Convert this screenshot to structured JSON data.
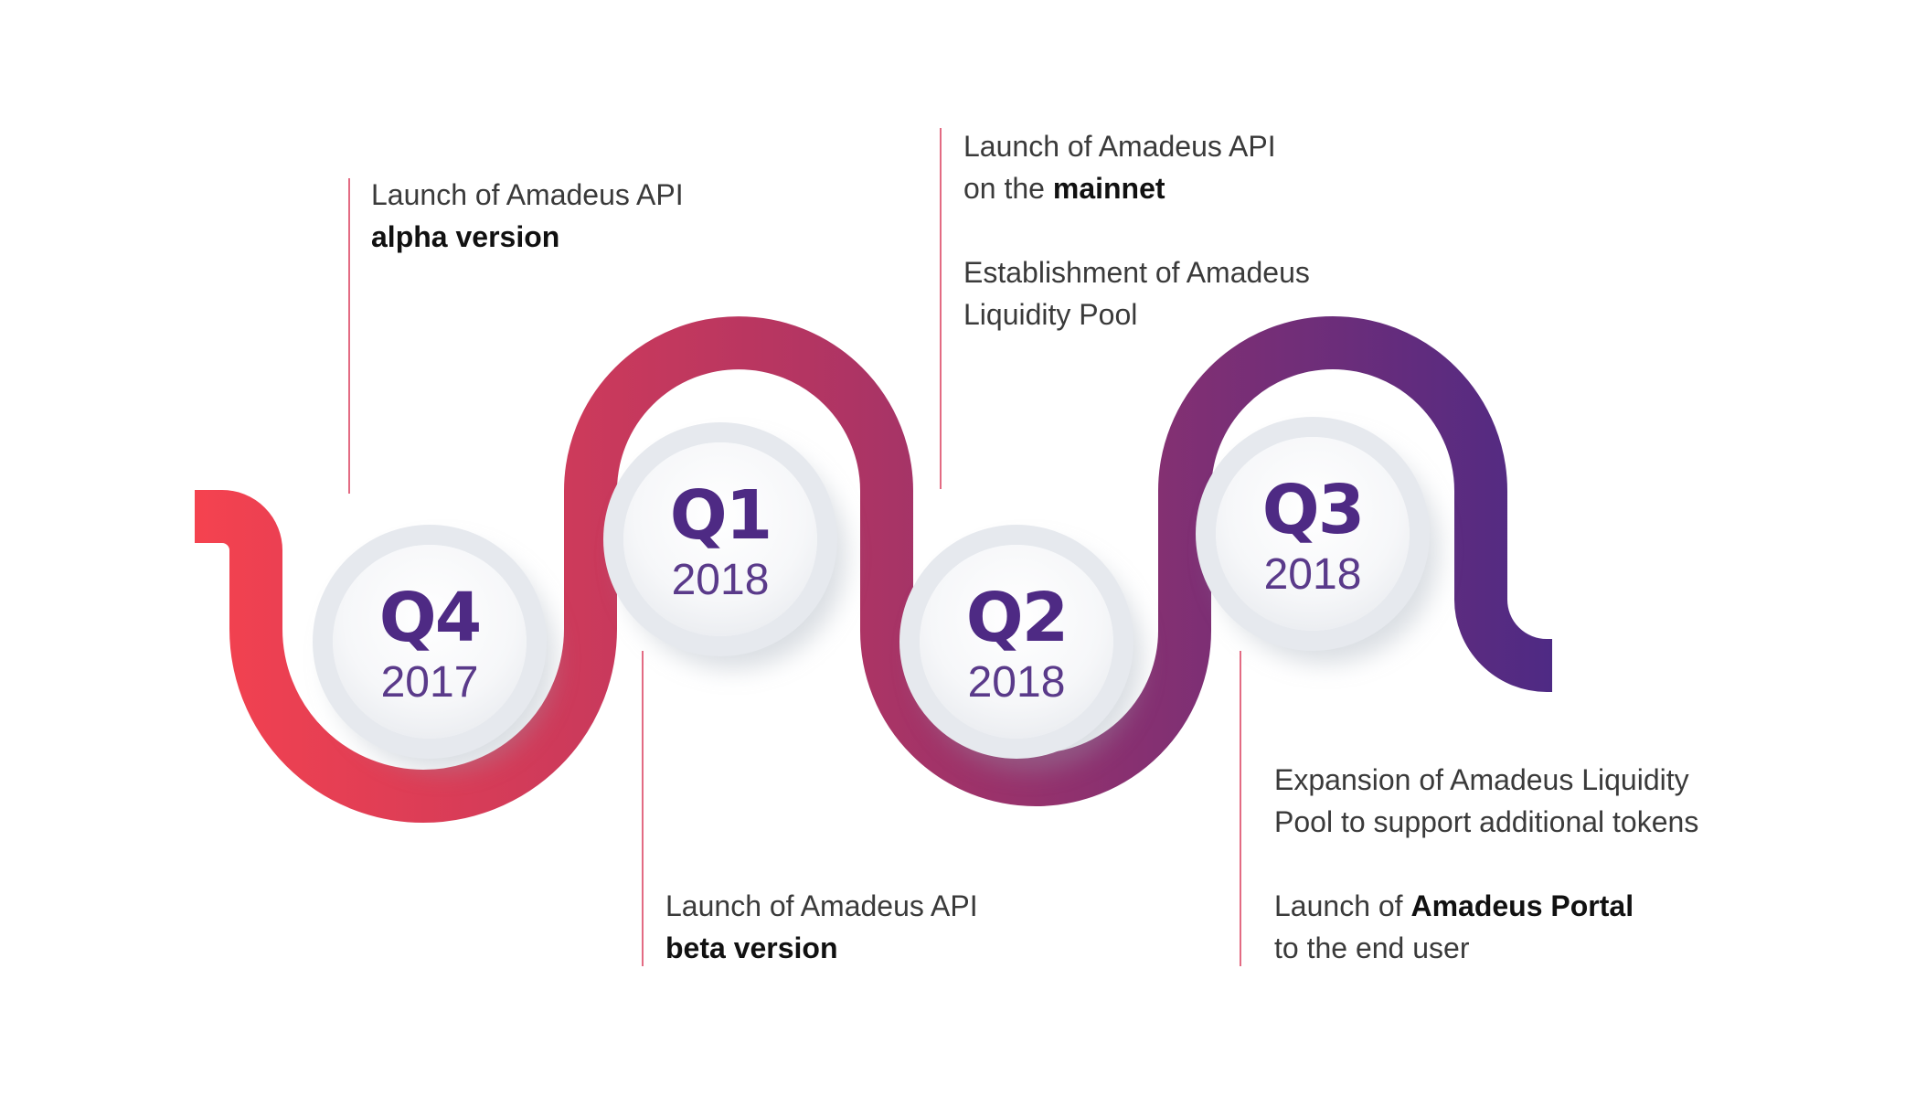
{
  "milestones": [
    {
      "quarter": "Q4",
      "year": "2017"
    },
    {
      "quarter": "Q1",
      "year": "2018"
    },
    {
      "quarter": "Q2",
      "year": "2018"
    },
    {
      "quarter": "Q3",
      "year": "2018"
    }
  ],
  "notes": {
    "q4_2017": {
      "line1": "Launch of Amadeus API",
      "line2_bold": "alpha version"
    },
    "q1_2018": {
      "line1": "Launch of Amadeus API",
      "line2_bold": "beta version"
    },
    "q2_2018": {
      "line1": "Launch of Amadeus API",
      "line2_prefix": "on the ",
      "line2_bold": "mainnet",
      "line3": "Establishment of Amadeus",
      "line4": "Liquidity Pool"
    },
    "q3_2018": {
      "line1": "Expansion of Amadeus Liquidity",
      "line2": "Pool to support additional tokens",
      "line3_prefix": "Launch of ",
      "line3_bold": "Amadeus Portal",
      "line4": "to the end user"
    }
  },
  "colors": {
    "gradient_start": "#f5424f",
    "gradient_mid": "#b43562",
    "gradient_end": "#4e2a84",
    "text_accent": "#4e2a84",
    "connector_line": "#e36b83"
  }
}
